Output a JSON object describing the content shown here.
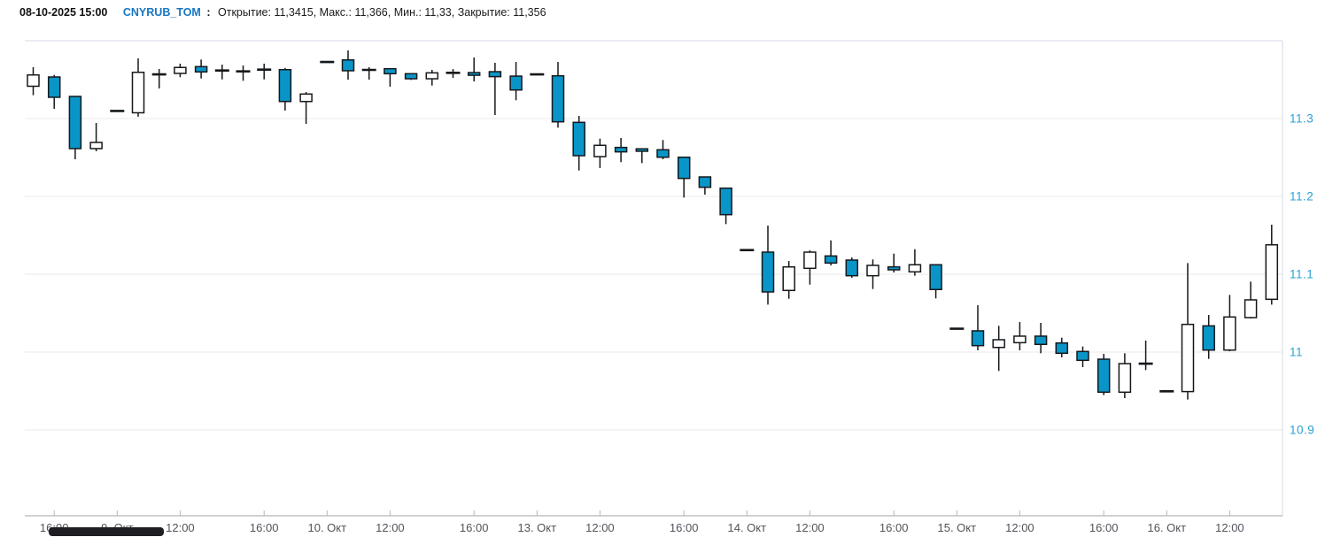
{
  "header": {
    "datetime": "08-10-2025 15:00",
    "ticker": "CNYRUB_TOM",
    "colon": ":",
    "ohlc_summary": {
      "text": "Открытие: 11,3415, Макс.: 11,366, Мин.: 11,33, Закрытие: 11,356",
      "open": "11,3415",
      "max": "11,366",
      "min": "11,33",
      "close": "11,356"
    }
  },
  "colors": {
    "up_fill": "#ffffff",
    "down_fill": "#0995c7",
    "candle_stroke": "#15181b",
    "grid": "#ededed",
    "frame": "#dde1e9",
    "axis_line": "#a3a3ab",
    "tick": "#b5b5bd",
    "y_label": "#2aa0d4",
    "x_label": "#53535b",
    "ticker_blue": "#1877c2",
    "scroll_thumb": "#1f1f23"
  },
  "chart_data": {
    "type": "candlestick",
    "title": "CNYRUB_TOM",
    "ylim": [
      10.79,
      11.4
    ],
    "grid": true,
    "y_ticks": [
      {
        "value": 11.3,
        "label": "11.3"
      },
      {
        "value": 11.2,
        "label": "11.2"
      },
      {
        "value": 11.1,
        "label": "11.1"
      },
      {
        "value": 11.0,
        "label": "11"
      },
      {
        "value": 10.9,
        "label": "10.9"
      }
    ],
    "x_ticks": [
      {
        "i": 1,
        "label": "16:00"
      },
      {
        "i": 4,
        "label": "9. Окт"
      },
      {
        "i": 7,
        "label": "12:00"
      },
      {
        "i": 11,
        "label": "16:00"
      },
      {
        "i": 14,
        "label": "10. Окт"
      },
      {
        "i": 17,
        "label": "12:00"
      },
      {
        "i": 21,
        "label": "16:00"
      },
      {
        "i": 24,
        "label": "13. Окт"
      },
      {
        "i": 27,
        "label": "12:00"
      },
      {
        "i": 31,
        "label": "16:00"
      },
      {
        "i": 34,
        "label": "14. Окт"
      },
      {
        "i": 37,
        "label": "12:00"
      },
      {
        "i": 41,
        "label": "16:00"
      },
      {
        "i": 44,
        "label": "15. Окт"
      },
      {
        "i": 47,
        "label": "12:00"
      },
      {
        "i": 51,
        "label": "16:00"
      },
      {
        "i": 54,
        "label": "16. Окт"
      },
      {
        "i": 57,
        "label": "12:00"
      }
    ],
    "ohlc": [
      [
        11.3415,
        11.366,
        11.33,
        11.356
      ],
      [
        11.3534,
        11.356,
        11.3125,
        11.3273
      ],
      [
        11.3284,
        11.3284,
        11.2477,
        11.2614
      ],
      [
        11.2614,
        11.2943,
        11.258,
        11.2693
      ],
      [
        11.3097,
        11.3097,
        11.3097,
        11.3097
      ],
      [
        11.3074,
        11.3773,
        11.3023,
        11.3594
      ],
      [
        11.3568,
        11.3636,
        11.3386,
        11.3568
      ],
      [
        11.358,
        11.3705,
        11.3531,
        11.3656
      ],
      [
        11.3667,
        11.3758,
        11.3515,
        11.3599
      ],
      [
        11.3617,
        11.3693,
        11.3503,
        11.3617
      ],
      [
        11.3606,
        11.3682,
        11.3485,
        11.3606
      ],
      [
        11.3628,
        11.3705,
        11.3503,
        11.3628
      ],
      [
        11.3628,
        11.365,
        11.3102,
        11.3219
      ],
      [
        11.3219,
        11.334,
        11.2932,
        11.3315
      ],
      [
        11.3727,
        11.3727,
        11.3727,
        11.3727
      ],
      [
        11.3753,
        11.3875,
        11.35,
        11.3614
      ],
      [
        11.3625,
        11.3659,
        11.35,
        11.3625
      ],
      [
        11.364,
        11.364,
        11.3409,
        11.3576
      ],
      [
        11.3576,
        11.358,
        11.3496,
        11.3511
      ],
      [
        11.3511,
        11.3625,
        11.3424,
        11.3587
      ],
      [
        11.3587,
        11.3636,
        11.3523,
        11.3587
      ],
      [
        11.359,
        11.3784,
        11.3477,
        11.3556
      ],
      [
        11.3602,
        11.3716,
        11.3045,
        11.3538
      ],
      [
        11.3545,
        11.3727,
        11.3235,
        11.3367
      ],
      [
        11.3568,
        11.3568,
        11.3568,
        11.3568
      ],
      [
        11.3549,
        11.3727,
        11.2883,
        11.2958
      ],
      [
        11.2951,
        11.3034,
        11.2333,
        11.2523
      ],
      [
        11.2511,
        11.2742,
        11.2364,
        11.2656
      ],
      [
        11.2629,
        11.275,
        11.244,
        11.2572
      ],
      [
        11.2611,
        11.2617,
        11.2428,
        11.258
      ],
      [
        11.2599,
        11.2724,
        11.2477,
        11.2503
      ],
      [
        11.2503,
        11.2503,
        11.1985,
        11.2231
      ],
      [
        11.225,
        11.225,
        11.2023,
        11.2117
      ],
      [
        11.2106,
        11.2106,
        11.1644,
        11.1765
      ],
      [
        11.131,
        11.131,
        11.131,
        11.131
      ],
      [
        11.1284,
        11.1625,
        11.061,
        11.0773
      ],
      [
        11.0792,
        11.117,
        11.0685,
        11.1094
      ],
      [
        11.1076,
        11.1307,
        11.0867,
        11.1284
      ],
      [
        11.1235,
        11.1435,
        11.1114,
        11.1144
      ],
      [
        11.1182,
        11.1216,
        11.0955,
        11.0981
      ],
      [
        11.0981,
        11.119,
        11.081,
        11.1114
      ],
      [
        11.1095,
        11.1265,
        11.1023,
        11.1057
      ],
      [
        11.1031,
        11.1322,
        11.0981,
        11.1122
      ],
      [
        11.1122,
        11.1122,
        11.069,
        11.0804
      ],
      [
        11.03,
        11.03,
        11.03,
        11.03
      ],
      [
        11.0273,
        11.0602,
        11.0023,
        11.0083
      ],
      [
        11.006,
        11.0337,
        10.9758,
        11.0159
      ],
      [
        11.0121,
        11.0386,
        11.0023,
        11.0205
      ],
      [
        11.0205,
        11.0375,
        10.9985,
        11.0099
      ],
      [
        11.0117,
        11.0185,
        10.9932,
        10.9985
      ],
      [
        11.0008,
        11.0072,
        10.9807,
        10.9894
      ],
      [
        10.9909,
        10.9977,
        10.9447,
        10.9485
      ],
      [
        10.9485,
        10.9985,
        10.9409,
        10.9852
      ],
      [
        10.9852,
        11.0148,
        10.9769,
        10.9852
      ],
      [
        10.9497,
        10.9497,
        10.9497,
        10.9497
      ],
      [
        10.9493,
        11.1144,
        10.939,
        11.0356
      ],
      [
        11.0337,
        11.0477,
        10.9913,
        11.0026
      ],
      [
        11.0026,
        11.0735,
        11.0011,
        11.0451
      ],
      [
        11.0443,
        11.0905,
        11.0432,
        11.0671
      ],
      [
        11.0678,
        11.1636,
        11.061,
        11.1378
      ]
    ]
  }
}
